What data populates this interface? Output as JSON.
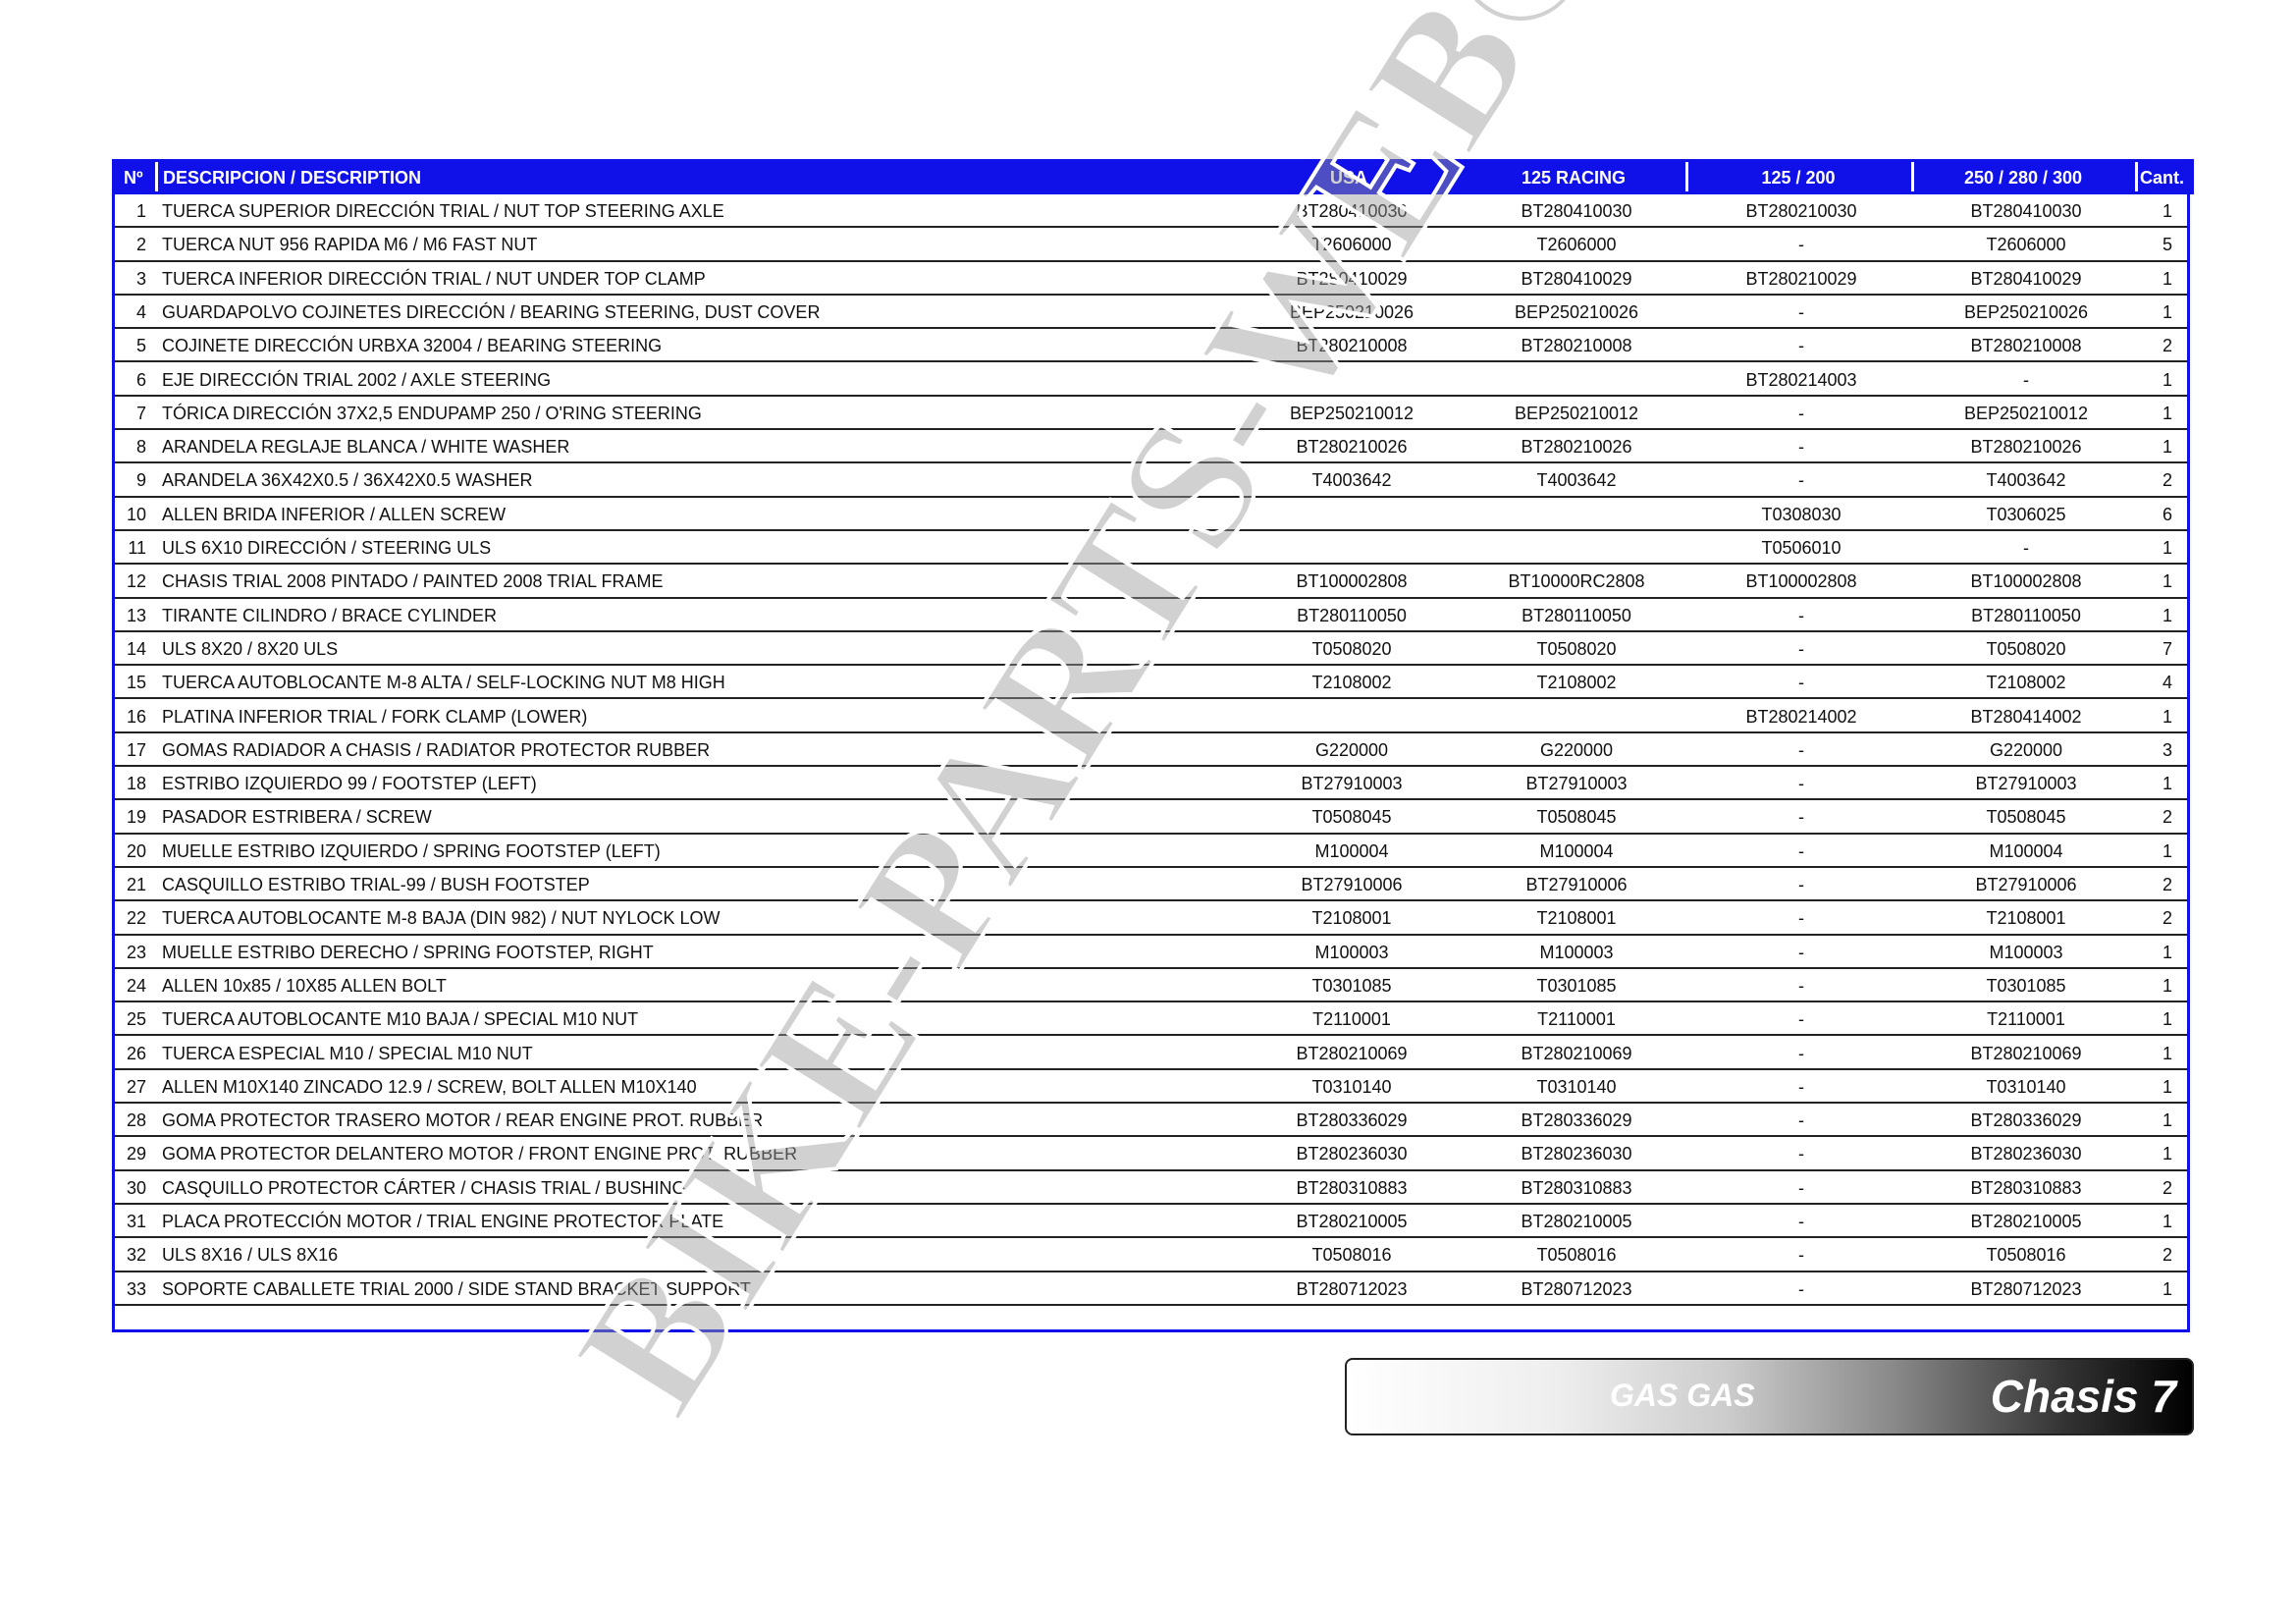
{
  "header": {
    "no": "Nº",
    "description": "DESCRIPCION / DESCRIPTION",
    "usa": "USA",
    "racing125": "125 RACING",
    "m125_200": "125 / 200",
    "m250_300": "250 / 280 / 300",
    "qty": "Cant."
  },
  "header_color": "#1010e8",
  "rows": [
    [
      "1",
      "TUERCA SUPERIOR DIRECCIÓN TRIAL / NUT TOP STEERING AXLE",
      "BT280410030",
      "BT280410030",
      "BT280210030",
      "BT280410030",
      "1"
    ],
    [
      "2",
      "TUERCA NUT 956 RAPIDA M6 / M6 FAST NUT",
      "T2606000",
      "T2606000",
      "-",
      "T2606000",
      "5"
    ],
    [
      "3",
      "TUERCA INFERIOR DIRECCIÓN TRIAL / NUT UNDER TOP CLAMP",
      "BT280410029",
      "BT280410029",
      "BT280210029",
      "BT280410029",
      "1"
    ],
    [
      "4",
      "GUARDAPOLVO COJINETES DIRECCIÓN / BEARING STEERING, DUST COVER",
      "BEP250210026",
      "BEP250210026",
      "-",
      "BEP250210026",
      "1"
    ],
    [
      "5",
      "COJINETE DIRECCIÓN URBXA 32004 / BEARING STEERING",
      "BT280210008",
      "BT280210008",
      "-",
      "BT280210008",
      "2"
    ],
    [
      "6",
      "EJE DIRECCIÓN TRIAL 2002 / AXLE STEERING",
      "",
      "",
      "BT280214003",
      "-",
      "1"
    ],
    [
      "7",
      "TÓRICA DIRECCIÓN 37X2,5 ENDUPAMP 250 / O'RING STEERING",
      "BEP250210012",
      "BEP250210012",
      "-",
      "BEP250210012",
      "1"
    ],
    [
      "8",
      "ARANDELA REGLAJE BLANCA / WHITE WASHER",
      "BT280210026",
      "BT280210026",
      "-",
      "BT280210026",
      "1"
    ],
    [
      "9",
      "ARANDELA 36X42X0.5 / 36X42X0.5 WASHER",
      "T4003642",
      "T4003642",
      "-",
      "T4003642",
      "2"
    ],
    [
      "10",
      "ALLEN BRIDA INFERIOR / ALLEN SCREW",
      "",
      "",
      "T0308030",
      "T0306025",
      "6"
    ],
    [
      "11",
      "ULS 6X10 DIRECCIÓN / STEERING ULS",
      "",
      "",
      "T0506010",
      "-",
      "1"
    ],
    [
      "12",
      "CHASIS TRIAL 2008 PINTADO / PAINTED 2008 TRIAL FRAME",
      "BT100002808",
      "BT10000RC2808",
      "BT100002808",
      "BT100002808",
      "1"
    ],
    [
      "13",
      "TIRANTE CILINDRO / BRACE CYLINDER",
      "BT280110050",
      "BT280110050",
      "-",
      "BT280110050",
      "1"
    ],
    [
      "14",
      "ULS 8X20 / 8X20 ULS",
      "T0508020",
      "T0508020",
      "-",
      "T0508020",
      "7"
    ],
    [
      "15",
      "TUERCA AUTOBLOCANTE M-8 ALTA / SELF-LOCKING NUT M8 HIGH",
      "T2108002",
      "T2108002",
      "-",
      "T2108002",
      "4"
    ],
    [
      "16",
      "PLATINA INFERIOR TRIAL / FORK CLAMP (LOWER)",
      "",
      "",
      "BT280214002",
      "BT280414002",
      "1"
    ],
    [
      "17",
      "GOMAS RADIADOR A CHASIS / RADIATOR PROTECTOR RUBBER",
      "G220000",
      "G220000",
      "-",
      "G220000",
      "3"
    ],
    [
      "18",
      "ESTRIBO IZQUIERDO 99 / FOOTSTEP (LEFT)",
      "BT27910003",
      "BT27910003",
      "-",
      "BT27910003",
      "1"
    ],
    [
      "19",
      "PASADOR ESTRIBERA /  SCREW",
      "T0508045",
      "T0508045",
      "-",
      "T0508045",
      "2"
    ],
    [
      "20",
      "MUELLE ESTRIBO IZQUIERDO / SPRING FOOTSTEP (LEFT)",
      "M100004",
      "M100004",
      "-",
      "M100004",
      "1"
    ],
    [
      "21",
      "CASQUILLO ESTRIBO TRIAL-99 / BUSH FOOTSTEP",
      "BT27910006",
      "BT27910006",
      "-",
      "BT27910006",
      "2"
    ],
    [
      "22",
      "TUERCA AUTOBLOCANTE M-8 BAJA (DIN 982) / NUT NYLOCK LOW",
      "T2108001",
      "T2108001",
      "-",
      "T2108001",
      "2"
    ],
    [
      "23",
      "MUELLE ESTRIBO DERECHO / SPRING FOOTSTEP, RIGHT",
      "M100003",
      "M100003",
      "-",
      "M100003",
      "1"
    ],
    [
      "24",
      "ALLEN 10x85 / 10X85 ALLEN BOLT",
      "T0301085",
      "T0301085",
      "-",
      "T0301085",
      "1"
    ],
    [
      "25",
      "TUERCA AUTOBLOCANTE M10 BAJA / SPECIAL M10 NUT",
      "T2110001",
      "T2110001",
      "-",
      "T2110001",
      "1"
    ],
    [
      "26",
      "TUERCA ESPECIAL M10 / SPECIAL M10 NUT",
      "BT280210069",
      "BT280210069",
      "-",
      "BT280210069",
      "1"
    ],
    [
      "27",
      "ALLEN M10X140 ZINCADO 12.9 / SCREW, BOLT ALLEN M10X140",
      "T0310140",
      "T0310140",
      "-",
      "T0310140",
      "1"
    ],
    [
      "28",
      "GOMA PROTECTOR TRASERO MOTOR / REAR ENGINE PROT. RUBBER",
      "BT280336029",
      "BT280336029",
      "-",
      "BT280336029",
      "1"
    ],
    [
      "29",
      "GOMA PROTECTOR DELANTERO MOTOR / FRONT ENGINE PROT. RUBBER",
      "BT280236030",
      "BT280236030",
      "-",
      "BT280236030",
      "1"
    ],
    [
      "30",
      "CASQUILLO PROTECTOR CÁRTER / CHASIS TRIAL / BUSHING",
      "BT280310883",
      "BT280310883",
      "-",
      "BT280310883",
      "2"
    ],
    [
      "31",
      "PLACA PROTECCIÓN MOTOR / TRIAL ENGINE PROTECTOR PLATE",
      "BT280210005",
      "BT280210005",
      "-",
      "BT280210005",
      "1"
    ],
    [
      "32",
      "ULS 8X16 / ULS 8X16",
      "T0508016",
      "T0508016",
      "-",
      "T0508016",
      "2"
    ],
    [
      "33",
      "SOPORTE CABALLETE TRIAL 2000 / SIDE STAND BRACKET SUPPORT",
      "BT280712023",
      "BT280712023",
      "-",
      "BT280712023",
      "1"
    ]
  ],
  "footer": {
    "brand": "GAS GAS",
    "chapter": "Chasis 7"
  },
  "watermark": "BIKE-PARTS-WEB©"
}
